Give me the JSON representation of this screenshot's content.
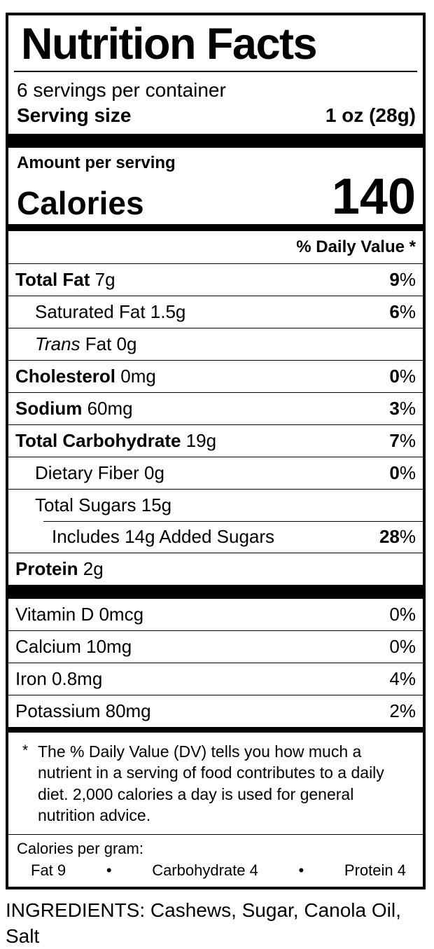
{
  "label": {
    "title": "Nutrition Facts",
    "servings_per_container": "6 servings per container",
    "serving_size_label": "Serving size",
    "serving_size_value": "1 oz (28g)",
    "amount_per_serving": "Amount per serving",
    "calories_label": "Calories",
    "calories_value": "140",
    "daily_value_header": "% Daily Value *",
    "percent_sign": "%",
    "nutrient_rows": [
      {
        "bold": "Total Fat",
        "text": " 7g",
        "dv": "9",
        "dv_bold": true,
        "indent": 0
      },
      {
        "text": "Saturated Fat 1.5g",
        "dv": "6",
        "dv_bold": true,
        "indent": 1
      },
      {
        "italic": "Trans",
        "text": " Fat 0g",
        "indent": 1
      },
      {
        "bold": "Cholesterol",
        "text": " 0mg",
        "dv": "0",
        "dv_bold": true,
        "indent": 0
      },
      {
        "bold": "Sodium",
        "text": " 60mg",
        "dv": "3",
        "dv_bold": true,
        "indent": 0
      },
      {
        "bold": "Total Carbohydrate",
        "text": " 19g",
        "dv": "7",
        "dv_bold": true,
        "indent": 0
      },
      {
        "text": "Dietary Fiber 0g",
        "dv": "0",
        "dv_bold": true,
        "indent": 1
      },
      {
        "text": "Total Sugars 15g",
        "indent": 1
      },
      {
        "text": "Includes 14g Added Sugars",
        "dv": "28",
        "dv_bold": true,
        "indent": 2,
        "divider_indent": true
      },
      {
        "bold": "Protein",
        "text": " 2g",
        "indent": 0
      }
    ],
    "vitamin_rows": [
      {
        "text": "Vitamin D 0mcg",
        "dv": "0",
        "dv_bold": false
      },
      {
        "text": "Calcium 10mg",
        "dv": "0",
        "dv_bold": false
      },
      {
        "text": "Iron 0.8mg",
        "dv": "4",
        "dv_bold": false
      },
      {
        "text": "Potassium 80mg",
        "dv": "2",
        "dv_bold": false
      }
    ],
    "footnote_marker": "*",
    "footnote": "The % Daily Value (DV) tells you how much a nutrient in a serving of food contributes to a daily diet. 2,000 calories a day is used for general nutrition advice.",
    "calories_per_gram": {
      "heading": "Calories per gram:",
      "items": [
        "Fat 9",
        "Carbohydrate 4",
        "Protein 4"
      ],
      "bullet": "•"
    }
  },
  "ingredients": "INGREDIENTS: Cashews, Sugar, Canola Oil, Salt",
  "colors": {
    "foreground": "#000000",
    "background": "#ffffff"
  }
}
